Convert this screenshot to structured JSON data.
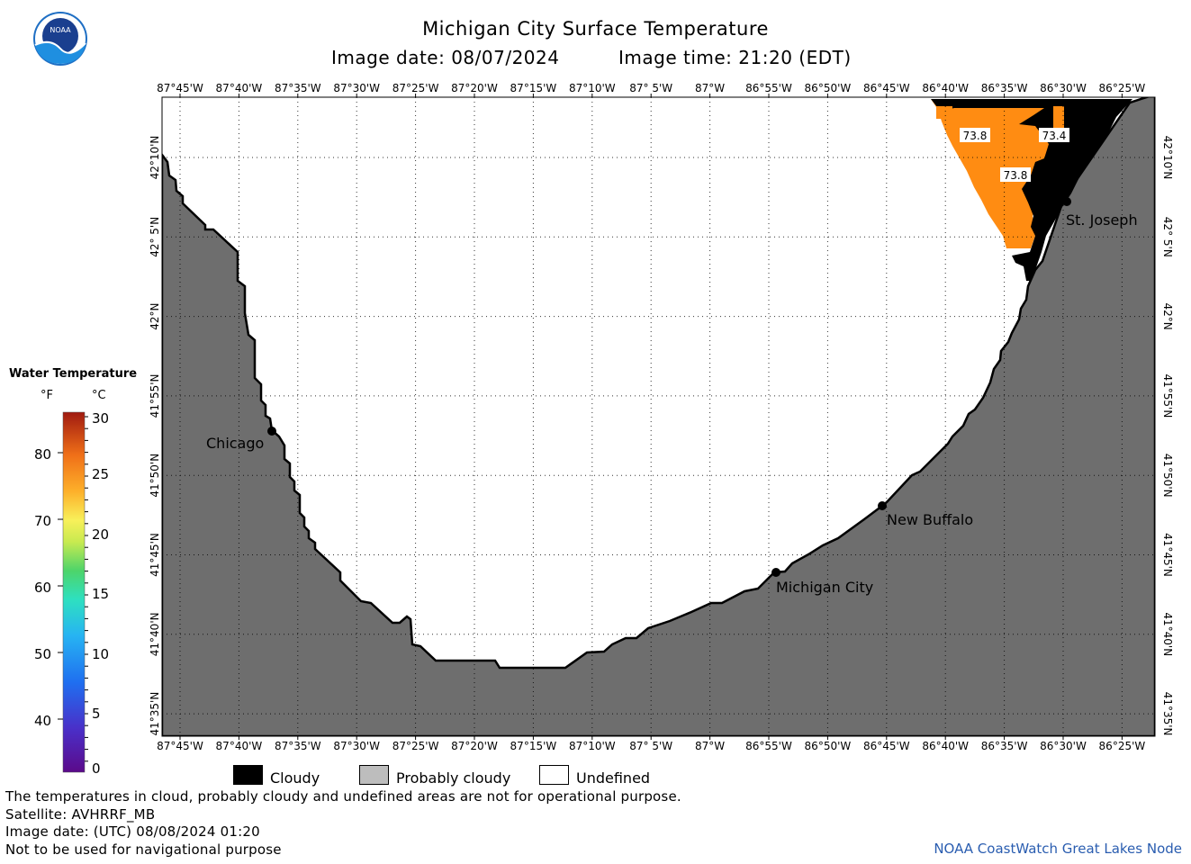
{
  "header": {
    "title": "Michigan City Surface Temperature",
    "image_date": "Image date: 08/07/2024",
    "image_time": "Image time: 21:20 (EDT)"
  },
  "logo": {
    "text": "NOAA"
  },
  "map": {
    "lon_labels": [
      "87°45'W",
      "87°40'W",
      "87°35'W",
      "87°30'W",
      "87°25'W",
      "87°20'W",
      "87°15'W",
      "87°10'W",
      "87° 5'W",
      "87°W",
      "86°55'W",
      "86°50'W",
      "86°45'W",
      "86°40'W",
      "86°35'W",
      "86°30'W",
      "86°25'W"
    ],
    "lat_labels": [
      "42°10'N",
      "42° 5'N",
      "42°N",
      "41°55'N",
      "41°50'N",
      "41°45'N",
      "41°40'N",
      "41°35'N"
    ],
    "cities": [
      {
        "name": "Chicago"
      },
      {
        "name": "Michigan City"
      },
      {
        "name": "New Buffalo"
      },
      {
        "name": "St. Joseph"
      }
    ],
    "temperature_labels": [
      "73.8",
      "73.4",
      "73.8"
    ],
    "colors": {
      "land": "#6e6e6e",
      "cloud": "#000000",
      "water_warm": "#ff8c12",
      "undefined": "#ffffff"
    }
  },
  "scale": {
    "title": "Water Temperature",
    "unit_f": "°F",
    "unit_c": "°C",
    "f_ticks": [
      "80",
      "70",
      "60",
      "50",
      "40"
    ],
    "c_ticks": [
      "30",
      "25",
      "20",
      "15",
      "10",
      "5",
      "0"
    ]
  },
  "legend": {
    "cloudy": "Cloudy",
    "probably_cloudy": "Probably cloudy",
    "undefined": "Undefined"
  },
  "footer": {
    "line1": "The temperatures in cloud, probably cloudy and undefined areas are not for operational purpose.",
    "line2": "Satellite: AVHRRF_MB",
    "line3": "Image date: (UTC) 08/08/2024  01:20",
    "line4": "Not to be used for navigational purpose",
    "credit": "NOAA CoastWatch Great Lakes Node"
  }
}
